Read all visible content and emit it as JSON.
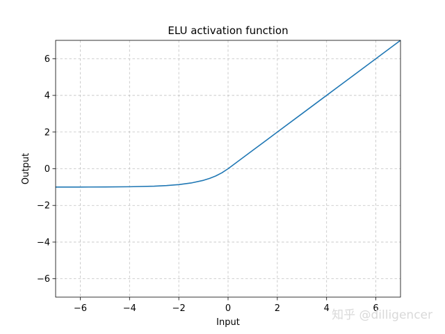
{
  "chart_data": {
    "type": "line",
    "title": "ELU activation function",
    "xlabel": "Input",
    "ylabel": "Output",
    "xlim": [
      -7,
      7
    ],
    "ylim": [
      -7,
      7
    ],
    "xticks": [
      -6,
      -4,
      -2,
      0,
      2,
      4,
      6
    ],
    "yticks": [
      -6,
      -4,
      -2,
      0,
      2,
      4,
      6
    ],
    "xtick_labels": [
      "−6",
      "−4",
      "−2",
      "0",
      "2",
      "4",
      "6"
    ],
    "ytick_labels": [
      "−6",
      "−4",
      "−2",
      "0",
      "2",
      "4",
      "6"
    ],
    "grid": true,
    "grid_style": "dashed",
    "legend": "none",
    "series": [
      {
        "color": "#1f77b4",
        "x": [
          -7,
          -6,
          -5,
          -4,
          -3,
          -2.5,
          -2,
          -1.5,
          -1,
          -0.75,
          -0.5,
          -0.25,
          0,
          1,
          2,
          3,
          4,
          5,
          6,
          7
        ],
        "y": [
          -0.999,
          -0.998,
          -0.993,
          -0.982,
          -0.95,
          -0.918,
          -0.865,
          -0.777,
          -0.632,
          -0.528,
          -0.393,
          -0.221,
          0,
          1,
          2,
          3,
          4,
          5,
          6,
          7
        ]
      }
    ]
  },
  "watermark": "知乎 @dilligencer"
}
